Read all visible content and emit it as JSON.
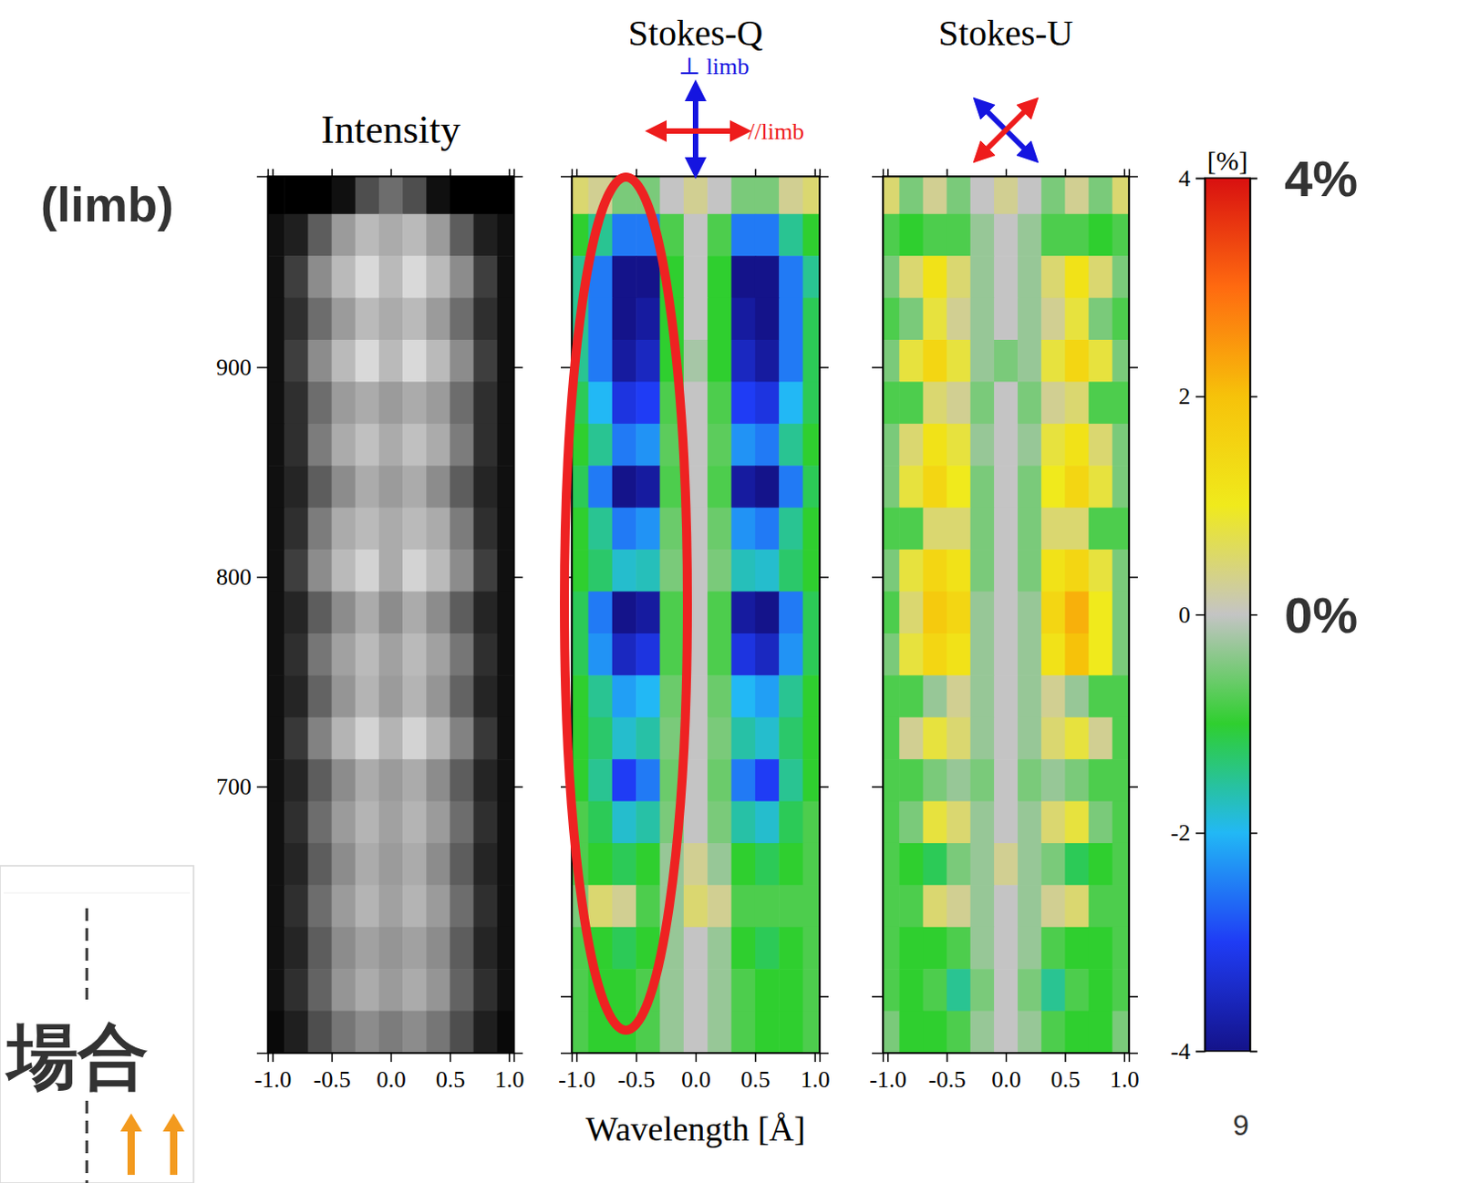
{
  "chart_data": [
    {
      "type": "heatmap",
      "title": "Intensity",
      "color": "gray",
      "x": [
        -1.0,
        -0.8,
        -0.6,
        -0.4,
        -0.2,
        0.0,
        0.2,
        0.4,
        0.6,
        0.8,
        1.0
      ],
      "y": [
        983,
        963,
        943,
        923,
        903,
        883,
        863,
        843,
        823,
        803,
        783,
        763,
        743,
        723,
        703,
        683,
        663,
        643,
        623,
        603,
        583
      ],
      "xlim": [
        -1.04,
        1.04
      ],
      "ylim": [
        573,
        991
      ],
      "xticks": [
        {
          "value": -1,
          "label": "-1.0"
        },
        {
          "value": -0.5,
          "label": "-0.5"
        },
        {
          "value": 0,
          "label": "0.0"
        },
        {
          "value": 0.5,
          "label": "0.5"
        },
        {
          "value": 1,
          "label": "1.0"
        }
      ],
      "yticks": [
        700,
        800,
        900
      ],
      "values": [
        [
          0,
          0,
          0,
          5,
          25,
          35,
          25,
          5,
          0,
          0,
          0
        ],
        [
          5,
          10,
          30,
          50,
          60,
          55,
          60,
          50,
          30,
          10,
          5
        ],
        [
          5,
          20,
          45,
          60,
          70,
          60,
          70,
          60,
          45,
          20,
          5
        ],
        [
          5,
          15,
          35,
          50,
          60,
          55,
          60,
          50,
          35,
          15,
          5
        ],
        [
          5,
          20,
          45,
          60,
          70,
          60,
          70,
          60,
          45,
          20,
          5
        ],
        [
          5,
          15,
          35,
          50,
          55,
          50,
          55,
          50,
          35,
          15,
          5
        ],
        [
          5,
          15,
          40,
          55,
          62,
          55,
          62,
          55,
          40,
          15,
          5
        ],
        [
          5,
          12,
          30,
          45,
          55,
          50,
          55,
          45,
          30,
          12,
          5
        ],
        [
          5,
          15,
          40,
          55,
          60,
          55,
          60,
          55,
          40,
          15,
          5
        ],
        [
          5,
          20,
          45,
          60,
          68,
          55,
          68,
          60,
          45,
          20,
          5
        ],
        [
          5,
          12,
          30,
          45,
          55,
          45,
          55,
          45,
          30,
          12,
          5
        ],
        [
          5,
          15,
          38,
          52,
          60,
          52,
          60,
          52,
          38,
          15,
          5
        ],
        [
          5,
          12,
          32,
          48,
          58,
          50,
          58,
          48,
          32,
          12,
          5
        ],
        [
          5,
          18,
          42,
          58,
          68,
          58,
          68,
          58,
          42,
          18,
          5
        ],
        [
          5,
          12,
          30,
          45,
          55,
          50,
          55,
          45,
          30,
          12,
          5
        ],
        [
          5,
          15,
          35,
          50,
          58,
          52,
          58,
          50,
          35,
          15,
          5
        ],
        [
          5,
          12,
          30,
          45,
          55,
          50,
          55,
          45,
          30,
          12,
          5
        ],
        [
          5,
          15,
          35,
          50,
          58,
          52,
          58,
          50,
          35,
          15,
          5
        ],
        [
          5,
          12,
          30,
          45,
          52,
          48,
          52,
          45,
          30,
          12,
          5
        ],
        [
          5,
          15,
          32,
          48,
          55,
          50,
          55,
          48,
          32,
          15,
          5
        ],
        [
          3,
          10,
          25,
          38,
          45,
          40,
          45,
          38,
          25,
          10,
          3
        ]
      ]
    },
    {
      "type": "heatmap",
      "title": "Stokes-Q",
      "xlabel": "Wavelength [Å]",
      "tick_labels": "x",
      "annotations": [
        "⊥ limb",
        "//limb"
      ],
      "x": [
        -1.0,
        -0.8,
        -0.6,
        -0.4,
        -0.2,
        0.0,
        0.2,
        0.4,
        0.6,
        0.8,
        1.0
      ],
      "y": [
        983,
        963,
        943,
        923,
        903,
        883,
        863,
        843,
        823,
        803,
        783,
        763,
        743,
        723,
        703,
        683,
        663,
        643,
        623,
        603,
        583
      ],
      "xlim": [
        -1.04,
        1.04
      ],
      "ylim": [
        573,
        991
      ],
      "xticks": [
        {
          "value": -1,
          "label": "-1.0"
        },
        {
          "value": -0.5,
          "label": "-0.5"
        },
        {
          "value": 0,
          "label": "0.0"
        },
        {
          "value": 0.5,
          "label": "0.5"
        },
        {
          "value": 1,
          "label": "1.0"
        }
      ],
      "yticks": [
        600,
        700,
        800,
        900
      ],
      "values": [
        [
          0.5,
          0.3,
          -0.5,
          -0.5,
          0,
          0.3,
          0,
          -0.5,
          -0.5,
          0.3,
          0.5
        ],
        [
          -1,
          -1.5,
          -2.5,
          -2.5,
          -0.8,
          0,
          -0.8,
          -2.5,
          -2.5,
          -1.5,
          -1
        ],
        [
          -1.5,
          -2.5,
          -4,
          -4,
          -1,
          0,
          -1,
          -4,
          -4,
          -2.5,
          -1.5
        ],
        [
          -1.5,
          -2.5,
          -4,
          -3.8,
          -1,
          0,
          -1,
          -3.8,
          -4,
          -2.5,
          -1.2
        ],
        [
          -1.5,
          -2.5,
          -3.8,
          -3.5,
          -1,
          -0.2,
          -1,
          -3.5,
          -3.8,
          -2.5,
          -1.2
        ],
        [
          -1.2,
          -2,
          -3.2,
          -3,
          -0.8,
          0,
          -0.8,
          -3,
          -3.2,
          -2,
          -1.2
        ],
        [
          -1,
          -1.5,
          -2.5,
          -2.3,
          -0.7,
          0,
          -0.7,
          -2.3,
          -2.5,
          -1.5,
          -1
        ],
        [
          -1.2,
          -2.5,
          -4,
          -3.8,
          -0.8,
          0,
          -0.8,
          -3.8,
          -4,
          -2.5,
          -1.2
        ],
        [
          -1,
          -1.5,
          -2.5,
          -2.3,
          -0.6,
          0,
          -0.6,
          -2.3,
          -2.5,
          -1.5,
          -1
        ],
        [
          -1,
          -1.3,
          -1.8,
          -1.7,
          -0.5,
          0,
          -0.5,
          -1.7,
          -1.8,
          -1.3,
          -1
        ],
        [
          -1.2,
          -2.5,
          -4,
          -3.8,
          -0.8,
          0,
          -0.8,
          -3.8,
          -4,
          -2.5,
          -1.2
        ],
        [
          -1.2,
          -2.3,
          -3.5,
          -3.2,
          -0.8,
          0,
          -0.8,
          -3.2,
          -3.5,
          -2.3,
          -1.2
        ],
        [
          -1,
          -1.5,
          -2.2,
          -2,
          -0.6,
          0,
          -0.6,
          -2,
          -2.2,
          -1.5,
          -1
        ],
        [
          -1,
          -1.3,
          -1.8,
          -1.6,
          -0.5,
          0,
          -0.5,
          -1.6,
          -1.8,
          -1.3,
          -1
        ],
        [
          -1,
          -1.5,
          -3,
          -2.5,
          -0.6,
          0,
          -0.6,
          -2.5,
          -3,
          -1.5,
          -1
        ],
        [
          -0.8,
          -1.2,
          -1.8,
          -1.6,
          -0.5,
          0,
          -0.5,
          -1.6,
          -1.8,
          -1.2,
          -0.8
        ],
        [
          -0.8,
          -1,
          -1.2,
          -1,
          -0.3,
          0.3,
          -0.3,
          -1,
          -1.2,
          -1,
          -0.8
        ],
        [
          -0.5,
          0.5,
          0.3,
          -0.8,
          -0.3,
          0.5,
          0.3,
          -0.8,
          -0.8,
          -0.8,
          -0.8
        ],
        [
          -0.8,
          -1,
          -1.2,
          -1,
          -0.3,
          0,
          -0.3,
          -1,
          -1.2,
          -1,
          -0.8
        ],
        [
          -0.8,
          -1,
          -1,
          -0.8,
          -0.3,
          0,
          -0.3,
          -0.8,
          -1,
          -1,
          -0.8
        ],
        [
          -0.8,
          -1,
          -1,
          -0.8,
          -0.3,
          0,
          -0.3,
          -0.8,
          -1,
          -1,
          -0.8
        ]
      ]
    },
    {
      "type": "heatmap",
      "title": "Stokes-U",
      "tick_labels": "x",
      "x": [
        -1.0,
        -0.8,
        -0.6,
        -0.4,
        -0.2,
        0.0,
        0.2,
        0.4,
        0.6,
        0.8,
        1.0
      ],
      "y": [
        983,
        963,
        943,
        923,
        903,
        883,
        863,
        843,
        823,
        803,
        783,
        763,
        743,
        723,
        703,
        683,
        663,
        643,
        623,
        603,
        583
      ],
      "xlim": [
        -1.04,
        1.04
      ],
      "ylim": [
        573,
        991
      ],
      "xticks": [
        {
          "value": -1,
          "label": "-1.0"
        },
        {
          "value": -0.5,
          "label": "-0.5"
        },
        {
          "value": 0,
          "label": "0.0"
        },
        {
          "value": 0.5,
          "label": "0.5"
        },
        {
          "value": 1,
          "label": "1.0"
        }
      ],
      "yticks": [
        600,
        700,
        800,
        900
      ],
      "values": [
        [
          0.5,
          -0.5,
          0.3,
          -0.5,
          0,
          0.3,
          0,
          -0.5,
          0.3,
          -0.5,
          0.5
        ],
        [
          -0.8,
          -1,
          -0.8,
          -0.8,
          -0.3,
          0,
          -0.3,
          -0.8,
          -0.8,
          -1,
          -0.8
        ],
        [
          -0.5,
          0.5,
          1.2,
          0.5,
          -0.3,
          0,
          -0.3,
          0.5,
          1.2,
          0.5,
          -0.5
        ],
        [
          -0.8,
          -0.5,
          0.8,
          0.3,
          -0.3,
          0,
          -0.3,
          0.3,
          0.8,
          -0.5,
          -0.8
        ],
        [
          -0.5,
          0.8,
          1.5,
          0.8,
          -0.3,
          -0.5,
          -0.3,
          0.8,
          1.5,
          0.8,
          -0.5
        ],
        [
          -0.8,
          -0.8,
          0.5,
          0.3,
          -0.5,
          0,
          -0.5,
          0.3,
          0.5,
          -0.8,
          -0.8
        ],
        [
          -0.5,
          0.5,
          1.2,
          0.8,
          -0.3,
          0,
          -0.3,
          0.8,
          1.2,
          0.5,
          -0.5
        ],
        [
          -0.5,
          0.8,
          1.5,
          1,
          -0.5,
          0,
          -0.5,
          1,
          1.5,
          0.8,
          -0.5
        ],
        [
          -0.8,
          -0.8,
          0.5,
          0.5,
          -0.5,
          0,
          -0.5,
          0.5,
          0.5,
          -0.8,
          -0.8
        ],
        [
          -0.5,
          0.8,
          1.5,
          1.2,
          -0.5,
          0,
          -0.5,
          1.2,
          1.5,
          0.8,
          -0.5
        ],
        [
          -0.8,
          0.5,
          1.8,
          1.5,
          -0.3,
          0,
          -0.3,
          1.5,
          2.2,
          1,
          -0.5
        ],
        [
          -0.5,
          0.8,
          1.5,
          1.2,
          -0.3,
          0,
          -0.3,
          1.2,
          2,
          1,
          -0.5
        ],
        [
          -0.8,
          -0.8,
          -0.3,
          0.3,
          -0.3,
          0,
          -0.3,
          0.3,
          -0.3,
          -0.8,
          -0.8
        ],
        [
          -0.8,
          0.3,
          0.8,
          0.5,
          -0.3,
          0,
          -0.3,
          0.5,
          0.8,
          0.3,
          -0.8
        ],
        [
          -0.8,
          -0.8,
          -0.5,
          -0.3,
          -0.5,
          0,
          -0.5,
          -0.3,
          -0.5,
          -0.8,
          -0.8
        ],
        [
          -0.8,
          -0.5,
          0.8,
          0.5,
          -0.3,
          0,
          -0.3,
          0.5,
          0.8,
          -0.5,
          -0.8
        ],
        [
          -0.8,
          -1,
          -1.2,
          -0.5,
          -0.3,
          0.3,
          -0.3,
          -0.5,
          -1.2,
          -1,
          -0.8
        ],
        [
          -0.8,
          -0.8,
          0.5,
          0.3,
          -0.3,
          0,
          -0.3,
          0.3,
          0.5,
          -0.8,
          -0.8
        ],
        [
          -0.8,
          -1,
          -1,
          -0.8,
          -0.3,
          0,
          -0.3,
          -0.8,
          -1,
          -1,
          -0.8
        ],
        [
          -0.8,
          -1,
          -0.8,
          -1.5,
          -0.5,
          0,
          -0.5,
          -1.5,
          -0.8,
          -1,
          -0.8
        ],
        [
          -0.5,
          -1,
          -1,
          -0.8,
          -0.3,
          0,
          -0.3,
          -0.8,
          -1,
          -1,
          -0.5
        ]
      ]
    },
    {
      "type": "colorbar",
      "title": "[%]",
      "ylim": [
        -4,
        4
      ],
      "yticks": [
        -4,
        -2,
        0,
        2,
        4
      ],
      "annotations": [
        {
          "text": "4%",
          "value": 4
        },
        {
          "text": "0%",
          "value": 0
        }
      ]
    }
  ],
  "page": {
    "label": "(limb)",
    "number": 9
  },
  "overlay": {
    "text": "場合"
  }
}
